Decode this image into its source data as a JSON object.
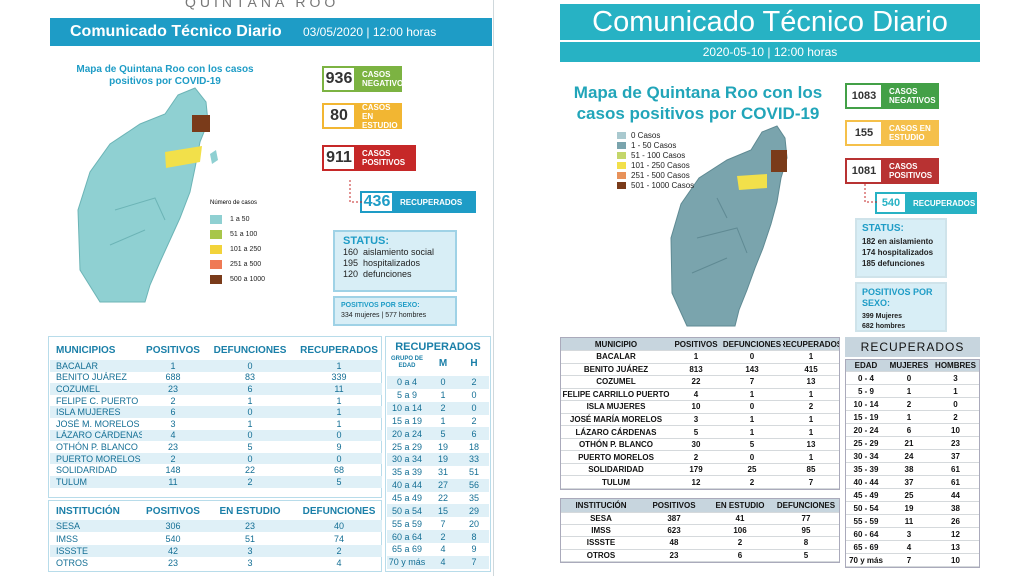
{
  "left": {
    "state": "QUINTANA ROO",
    "header": {
      "title": "Comunicado Técnico Diario",
      "date": "03/05/2020 | 12:00 horas"
    },
    "map": {
      "title": "Mapa de Quintana Roo con los casos positivos por COVID-19",
      "legend_title": "Número de casos",
      "legend": [
        "1 a 50",
        "51 a 100",
        "101 a 250",
        "251 a 500",
        "500 a 1000"
      ]
    },
    "stats": [
      {
        "value": "936",
        "label": "CASOS NEGATIVOS"
      },
      {
        "value": "80",
        "label": "CASOS EN ESTUDIO"
      },
      {
        "value": "911",
        "label": "CASOS POSITIVOS"
      },
      {
        "value": "436",
        "label": "RECUPERADOS"
      }
    ],
    "status": {
      "title": "STATUS:",
      "items": [
        "160  aislamiento social",
        "195  hospitalizados",
        "120  defunciones"
      ]
    },
    "sex": {
      "title": "POSITIVOS POR SEXO:",
      "text": "334 mujeres  |  577 hombres"
    },
    "municipios": {
      "header": [
        "MUNICIPIOS",
        "POSITIVOS",
        "DEFUNCIONES",
        "RECUPERADOS"
      ],
      "rows": [
        [
          "BACALAR",
          "1",
          "0",
          "1"
        ],
        [
          "BENITO JUÁREZ",
          "688",
          "83",
          "339"
        ],
        [
          "COZUMEL",
          "23",
          "6",
          "11"
        ],
        [
          "FELIPE C. PUERTO",
          "2",
          "1",
          "1"
        ],
        [
          "ISLA MUJERES",
          "6",
          "0",
          "1"
        ],
        [
          "JOSÉ M. MORELOS",
          "3",
          "1",
          "1"
        ],
        [
          "LÁZARO CÁRDENAS",
          "4",
          "0",
          "0"
        ],
        [
          "OTHÓN P. BLANCO",
          "23",
          "5",
          "9"
        ],
        [
          "PUERTO MORELOS",
          "2",
          "0",
          "0"
        ],
        [
          "SOLIDARIDAD",
          "148",
          "22",
          "68"
        ],
        [
          "TULUM",
          "11",
          "2",
          "5"
        ]
      ]
    },
    "instituciones": {
      "header": [
        "INSTITUCIÓN",
        "POSITIVOS",
        "EN ESTUDIO",
        "DEFUNCIONES"
      ],
      "rows": [
        [
          "SESA",
          "306",
          "23",
          "40"
        ],
        [
          "IMSS",
          "540",
          "51",
          "74"
        ],
        [
          "ISSSTE",
          "42",
          "3",
          "2"
        ],
        [
          "OTROS",
          "23",
          "3",
          "4"
        ]
      ]
    },
    "recuperados": {
      "title": "RECUPERADOS",
      "header": [
        "GRUPO DE EDAD",
        "M",
        "H"
      ],
      "rows": [
        [
          "0 a 4",
          "0",
          "2"
        ],
        [
          "5 a 9",
          "1",
          "0"
        ],
        [
          "10 a 14",
          "2",
          "0"
        ],
        [
          "15 a 19",
          "1",
          "2"
        ],
        [
          "20 a 24",
          "5",
          "6"
        ],
        [
          "25 a 29",
          "19",
          "18"
        ],
        [
          "30 a 34",
          "19",
          "33"
        ],
        [
          "35 a 39",
          "31",
          "51"
        ],
        [
          "40 a 44",
          "27",
          "56"
        ],
        [
          "45 a 49",
          "22",
          "35"
        ],
        [
          "50 a 54",
          "15",
          "29"
        ],
        [
          "55 a 59",
          "7",
          "20"
        ],
        [
          "60 a 64",
          "2",
          "8"
        ],
        [
          "65 a 69",
          "4",
          "9"
        ],
        [
          "70 y más",
          "4",
          "7"
        ]
      ]
    }
  },
  "right": {
    "header": {
      "title": "Comunicado Técnico Diario",
      "date": "2020-05-10 | 12:00 horas"
    },
    "map": {
      "title": "Mapa de Quintana Roo con los casos positivos por COVID-19",
      "legend": [
        "0 Casos",
        "1 - 50 Casos",
        "51 - 100 Casos",
        "101 - 250 Casos",
        "251 - 500 Casos",
        "501 - 1000 Casos"
      ]
    },
    "stats": [
      {
        "value": "1083",
        "label": "CASOS NEGATIVOS"
      },
      {
        "value": "155",
        "label": "CASOS EN ESTUDIO"
      },
      {
        "value": "1081",
        "label": "CASOS POSITIVOS"
      },
      {
        "value": "540",
        "label": "RECUPERADOS"
      }
    ],
    "status": {
      "title": "STATUS:",
      "items": [
        "182 en aislamiento",
        "174 hospitalizados",
        "185 defunciones"
      ]
    },
    "sex": {
      "title": "POSITIVOS POR SEXO:",
      "items": [
        "399 Mujeres",
        "682 hombres"
      ]
    },
    "municipios": {
      "header": [
        "MUNICIPIO",
        "POSITIVOS",
        "DEFUNCIONES",
        "RECUPERADOS"
      ],
      "rows": [
        [
          "BACALAR",
          "1",
          "0",
          "1"
        ],
        [
          "BENITO JUÁREZ",
          "813",
          "143",
          "415"
        ],
        [
          "COZUMEL",
          "22",
          "7",
          "13"
        ],
        [
          "FELIPE CARRILLO PUERTO",
          "4",
          "1",
          "1"
        ],
        [
          "ISLA MUJERES",
          "10",
          "0",
          "2"
        ],
        [
          "JOSÉ MARÍA MORELOS",
          "3",
          "1",
          "1"
        ],
        [
          "LÁZARO CÁRDENAS",
          "5",
          "1",
          "1"
        ],
        [
          "OTHÓN P. BLANCO",
          "30",
          "5",
          "13"
        ],
        [
          "PUERTO MORELOS",
          "2",
          "0",
          "1"
        ],
        [
          "SOLIDARIDAD",
          "179",
          "25",
          "85"
        ],
        [
          "TULUM",
          "12",
          "2",
          "7"
        ]
      ]
    },
    "instituciones": {
      "header": [
        "INSTITUCIÓN",
        "POSITIVOS",
        "EN ESTUDIO",
        "DEFUNCIONES"
      ],
      "rows": [
        [
          "SESA",
          "387",
          "41",
          "77"
        ],
        [
          "IMSS",
          "623",
          "106",
          "95"
        ],
        [
          "ISSSTE",
          "48",
          "2",
          "8"
        ],
        [
          "OTROS",
          "23",
          "6",
          "5"
        ]
      ]
    },
    "recuperados": {
      "title": "RECUPERADOS",
      "header": [
        "EDAD",
        "MUJERES",
        "HOMBRES"
      ],
      "rows": [
        [
          "0 - 4",
          "0",
          "3"
        ],
        [
          "5 - 9",
          "1",
          "1"
        ],
        [
          "10 - 14",
          "2",
          "0"
        ],
        [
          "15 - 19",
          "1",
          "2"
        ],
        [
          "20 - 24",
          "6",
          "10"
        ],
        [
          "25 - 29",
          "21",
          "23"
        ],
        [
          "30 - 34",
          "24",
          "37"
        ],
        [
          "35 - 39",
          "38",
          "61"
        ],
        [
          "40 - 44",
          "37",
          "61"
        ],
        [
          "45 - 49",
          "25",
          "44"
        ],
        [
          "50 - 54",
          "19",
          "38"
        ],
        [
          "55 - 59",
          "11",
          "26"
        ],
        [
          "60 - 64",
          "3",
          "12"
        ],
        [
          "65 - 69",
          "4",
          "13"
        ],
        [
          "70 y más",
          "7",
          "10"
        ]
      ]
    }
  }
}
